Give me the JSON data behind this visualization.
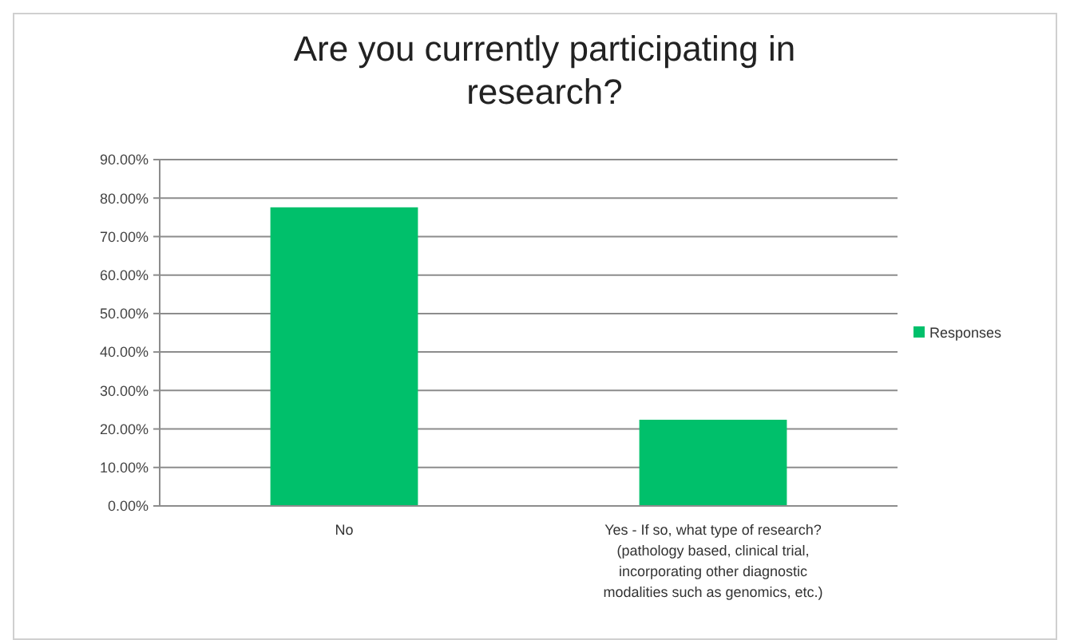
{
  "chart_data": {
    "type": "bar",
    "title": "Are you currently participating in research?",
    "categories": [
      "No",
      "Yes - If so, what type of research? (pathology based, clinical trial, incorporating other diagnostic modalities such as genomics, etc.)"
    ],
    "series": [
      {
        "name": "Responses",
        "color": "#00c06b",
        "values": [
          77.6,
          22.4
        ]
      }
    ],
    "ylim": [
      0,
      90
    ],
    "yticks": [
      {
        "value": 0,
        "label": "0.00%"
      },
      {
        "value": 10,
        "label": "10.00%"
      },
      {
        "value": 20,
        "label": "20.00%"
      },
      {
        "value": 30,
        "label": "30.00%"
      },
      {
        "value": 40,
        "label": "40.00%"
      },
      {
        "value": 50,
        "label": "50.00%"
      },
      {
        "value": 60,
        "label": "60.00%"
      },
      {
        "value": 70,
        "label": "70.00%"
      },
      {
        "value": 80,
        "label": "80.00%"
      },
      {
        "value": 90,
        "label": "90.00%"
      }
    ],
    "grid": "y",
    "legend": "right"
  }
}
